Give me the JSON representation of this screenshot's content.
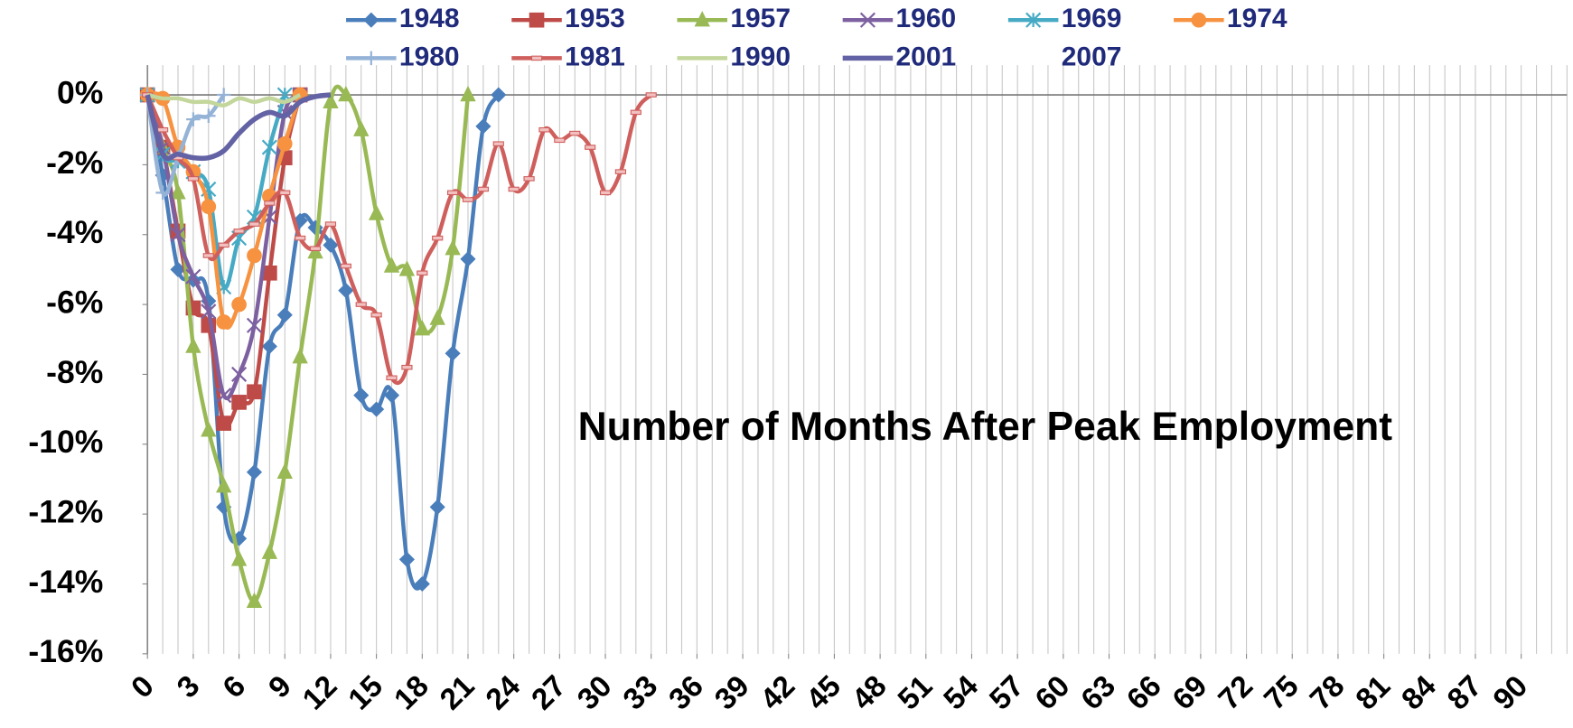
{
  "chart_data": {
    "type": "line",
    "annotation": "Number of Months After Peak Employment",
    "xlim": [
      0,
      93
    ],
    "xticks": [
      0,
      3,
      6,
      9,
      12,
      15,
      18,
      21,
      24,
      27,
      30,
      33,
      36,
      39,
      42,
      45,
      48,
      51,
      54,
      57,
      60,
      63,
      66,
      69,
      72,
      75,
      78,
      81,
      84,
      87,
      90
    ],
    "ylim": [
      -16,
      0.85
    ],
    "yticks": [
      {
        "value": 0,
        "label": "0%"
      },
      {
        "value": -2,
        "label": "-2%"
      },
      {
        "value": -4,
        "label": "-4%"
      },
      {
        "value": -6,
        "label": "-6%"
      },
      {
        "value": -8,
        "label": "-8%"
      },
      {
        "value": -10,
        "label": "-10%"
      },
      {
        "value": -12,
        "label": "-12%"
      },
      {
        "value": -14,
        "label": "-14%"
      },
      {
        "value": -16,
        "label": "-16%"
      }
    ],
    "grid": true,
    "legend": "top",
    "series": [
      {
        "name": "1948",
        "color": "#4a7ebb",
        "marker": "diamond",
        "x": [
          0,
          1,
          2,
          3,
          4,
          5,
          6,
          7,
          8,
          9,
          10,
          11,
          12,
          13,
          14,
          15,
          16,
          17,
          18,
          19,
          20,
          21,
          22,
          23
        ],
        "values": [
          0,
          -2.3,
          -5.0,
          -5.3,
          -5.9,
          -11.8,
          -12.7,
          -10.8,
          -7.2,
          -6.3,
          -3.6,
          -3.8,
          -4.3,
          -5.6,
          -8.6,
          -9.0,
          -8.6,
          -13.3,
          -14.0,
          -11.8,
          -7.4,
          -4.7,
          -0.9,
          0
        ]
      },
      {
        "name": "1953",
        "color": "#be4b48",
        "marker": "square",
        "x": [
          0,
          1,
          2,
          3,
          4,
          5,
          6,
          7,
          8,
          9,
          10
        ],
        "values": [
          0,
          -1.5,
          -3.9,
          -6.1,
          -6.6,
          -9.4,
          -8.8,
          -8.5,
          -5.1,
          -1.8,
          0
        ]
      },
      {
        "name": "1957",
        "color": "#98b954",
        "marker": "triangle",
        "x": [
          0,
          1,
          2,
          3,
          4,
          5,
          6,
          7,
          8,
          9,
          10,
          11,
          12,
          13,
          14,
          15,
          16,
          17,
          18,
          19,
          20,
          21
        ],
        "values": [
          0,
          -1.5,
          -2.8,
          -7.2,
          -9.6,
          -11.2,
          -13.3,
          -14.5,
          -13.1,
          -10.8,
          -7.5,
          -4.5,
          -0.2,
          0,
          -1.0,
          -3.4,
          -4.9,
          -5.0,
          -6.7,
          -6.4,
          -4.4,
          0
        ]
      },
      {
        "name": "1960",
        "color": "#7d60a0",
        "marker": "x",
        "x": [
          0,
          1,
          2,
          3,
          4,
          5,
          6,
          7,
          8,
          9,
          10
        ],
        "values": [
          0,
          -1.5,
          -4.0,
          -5.2,
          -6.2,
          -8.6,
          -8.0,
          -6.6,
          -3.5,
          -0.5,
          0
        ]
      },
      {
        "name": "1969",
        "color": "#46aac5",
        "marker": "star",
        "x": [
          0,
          1,
          2,
          3,
          4,
          5,
          6,
          7,
          8,
          9
        ],
        "values": [
          0,
          -1.7,
          -1.9,
          -2.2,
          -2.7,
          -5.5,
          -4.1,
          -3.5,
          -1.5,
          0
        ]
      },
      {
        "name": "1974",
        "color": "#f69240",
        "marker": "circle",
        "x": [
          0,
          1,
          2,
          3,
          4,
          5,
          6,
          7,
          8,
          9,
          10
        ],
        "values": [
          0,
          -0.1,
          -1.5,
          -2.2,
          -3.2,
          -6.5,
          -6.0,
          -4.6,
          -2.9,
          -1.4,
          0
        ]
      },
      {
        "name": "1980",
        "color": "#95b3d7",
        "marker": "plus",
        "x": [
          0,
          1,
          2,
          3,
          4,
          5
        ],
        "values": [
          0,
          -2.8,
          -1.8,
          -0.7,
          -0.6,
          0
        ]
      },
      {
        "name": "1981",
        "color": "#cf5f5c",
        "marker": "dash",
        "x": [
          0,
          1,
          2,
          3,
          4,
          5,
          6,
          7,
          8,
          9,
          10,
          11,
          12,
          13,
          14,
          15,
          16,
          17,
          18,
          19,
          20,
          21,
          22,
          23,
          24,
          25,
          26,
          27,
          28,
          29,
          30,
          31,
          32,
          33
        ],
        "values": [
          0,
          -1.0,
          -1.8,
          -2.4,
          -4.6,
          -4.3,
          -3.9,
          -3.7,
          -3.1,
          -2.8,
          -4.1,
          -4.4,
          -3.7,
          -4.9,
          -6.0,
          -6.3,
          -8.1,
          -7.8,
          -5.1,
          -4.1,
          -2.8,
          -3.0,
          -2.7,
          -1.4,
          -2.7,
          -2.4,
          -1.0,
          -1.3,
          -1.1,
          -1.5,
          -2.8,
          -2.2,
          -0.5,
          0
        ]
      },
      {
        "name": "1990",
        "color": "#c3d69b",
        "marker": "none",
        "x": [
          0,
          1,
          2,
          3,
          4,
          5,
          6,
          7,
          8,
          9,
          10
        ],
        "values": [
          0,
          -0.1,
          -0.1,
          -0.2,
          -0.2,
          -0.3,
          -0.1,
          -0.2,
          -0.1,
          -0.2,
          0
        ]
      },
      {
        "name": "2001",
        "color": "#6262a4",
        "marker": "none",
        "x": [
          0,
          1,
          2,
          3,
          4,
          5,
          6,
          7,
          8,
          9,
          10,
          11,
          12
        ],
        "values": [
          0,
          -1.7,
          -1.7,
          -1.8,
          -1.8,
          -1.6,
          -1.1,
          -0.7,
          -0.5,
          -0.6,
          -0.2,
          -0.05,
          0
        ]
      },
      {
        "name": "2007",
        "color": "#ffffff",
        "marker": "none",
        "x": [],
        "values": []
      }
    ]
  }
}
